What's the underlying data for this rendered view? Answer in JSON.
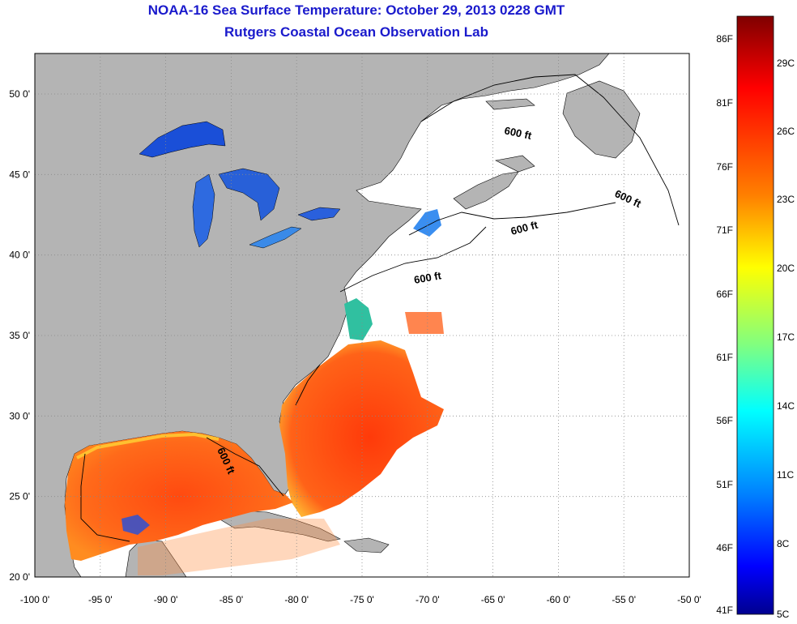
{
  "title": "NOAA-16 Sea Surface Temperature:  October 29, 2013 0228 GMT",
  "subtitle": "Rutgers Coastal Ocean Observation Lab",
  "map": {
    "lon_labels": [
      "-100 0'",
      "-95 0'",
      "-90 0'",
      "-85 0'",
      "-80 0'",
      "-75 0'",
      "-70 0'",
      "-65 0'",
      "-60 0'",
      "-55 0'",
      "-50 0'"
    ],
    "lat_labels": [
      "50 0'",
      "45 0'",
      "40 0'",
      "35 0'",
      "30 0'",
      "25 0'",
      "20 0'"
    ],
    "isobath_label": "600 ft",
    "colors": {
      "land": "#b4b4b4",
      "ocean_no_data": "#ffffff",
      "grid": "#888888"
    }
  },
  "colorbar": {
    "f_labels": [
      "86F",
      "81F",
      "76F",
      "71F",
      "66F",
      "61F",
      "56F",
      "51F",
      "46F",
      "41F"
    ],
    "c_labels": [
      "29C",
      "26C",
      "23C",
      "20C",
      "17C",
      "14C",
      "11C",
      "8C",
      "5C"
    ],
    "stops": [
      "#7f0000",
      "#ff0000",
      "#ff8000",
      "#ffff00",
      "#80ff80",
      "#00ffff",
      "#0080ff",
      "#0000ff",
      "#00008f"
    ]
  }
}
